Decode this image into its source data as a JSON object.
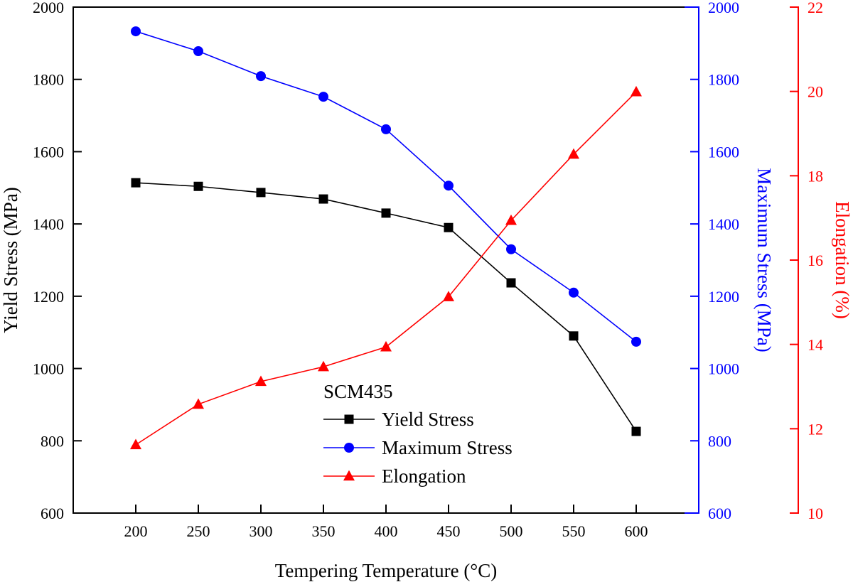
{
  "chart_data": {
    "type": "line",
    "title": "",
    "xlabel": "Tempering Temperature (°C)",
    "x": [
      200,
      250,
      300,
      350,
      400,
      450,
      500,
      550,
      600
    ],
    "xlim": [
      150,
      650
    ],
    "xticks": [
      200,
      250,
      300,
      350,
      400,
      450,
      500,
      550,
      600
    ],
    "axes": {
      "left": {
        "label": "Yield Stress (MPa)",
        "ylim": [
          600,
          2000
        ],
        "ticks": [
          600,
          800,
          1000,
          1200,
          1400,
          1600,
          1800,
          2000
        ],
        "color": "#000000"
      },
      "right1": {
        "label": "Maximum Stress (MPa)",
        "ylim": [
          600,
          2000
        ],
        "ticks": [
          600,
          800,
          1000,
          1200,
          1400,
          1600,
          1800,
          2000
        ],
        "color": "#0000ff"
      },
      "right2": {
        "label": "Elongation (%)",
        "ylim": [
          10,
          22
        ],
        "ticks": [
          10,
          12,
          14,
          16,
          18,
          20,
          22
        ],
        "color": "#ff0000"
      }
    },
    "series": [
      {
        "name": "Yield Stress",
        "axis": "left",
        "color": "#000000",
        "marker": "square",
        "values": [
          1514,
          1504,
          1487,
          1469,
          1430,
          1390,
          1237,
          1090,
          826
        ]
      },
      {
        "name": "Maximum Stress",
        "axis": "right1",
        "color": "#0000ff",
        "marker": "circle",
        "values": [
          1933,
          1878,
          1809,
          1752,
          1662,
          1506,
          1330,
          1210,
          1074
        ]
      },
      {
        "name": "Elongation",
        "axis": "right2",
        "color": "#ff0000",
        "marker": "triangle",
        "values": [
          11.62,
          12.58,
          13.12,
          13.47,
          13.94,
          15.13,
          16.94,
          18.51,
          19.99
        ]
      }
    ],
    "legend": {
      "title": "SCM435",
      "position": "lower-center"
    },
    "grid": false
  }
}
